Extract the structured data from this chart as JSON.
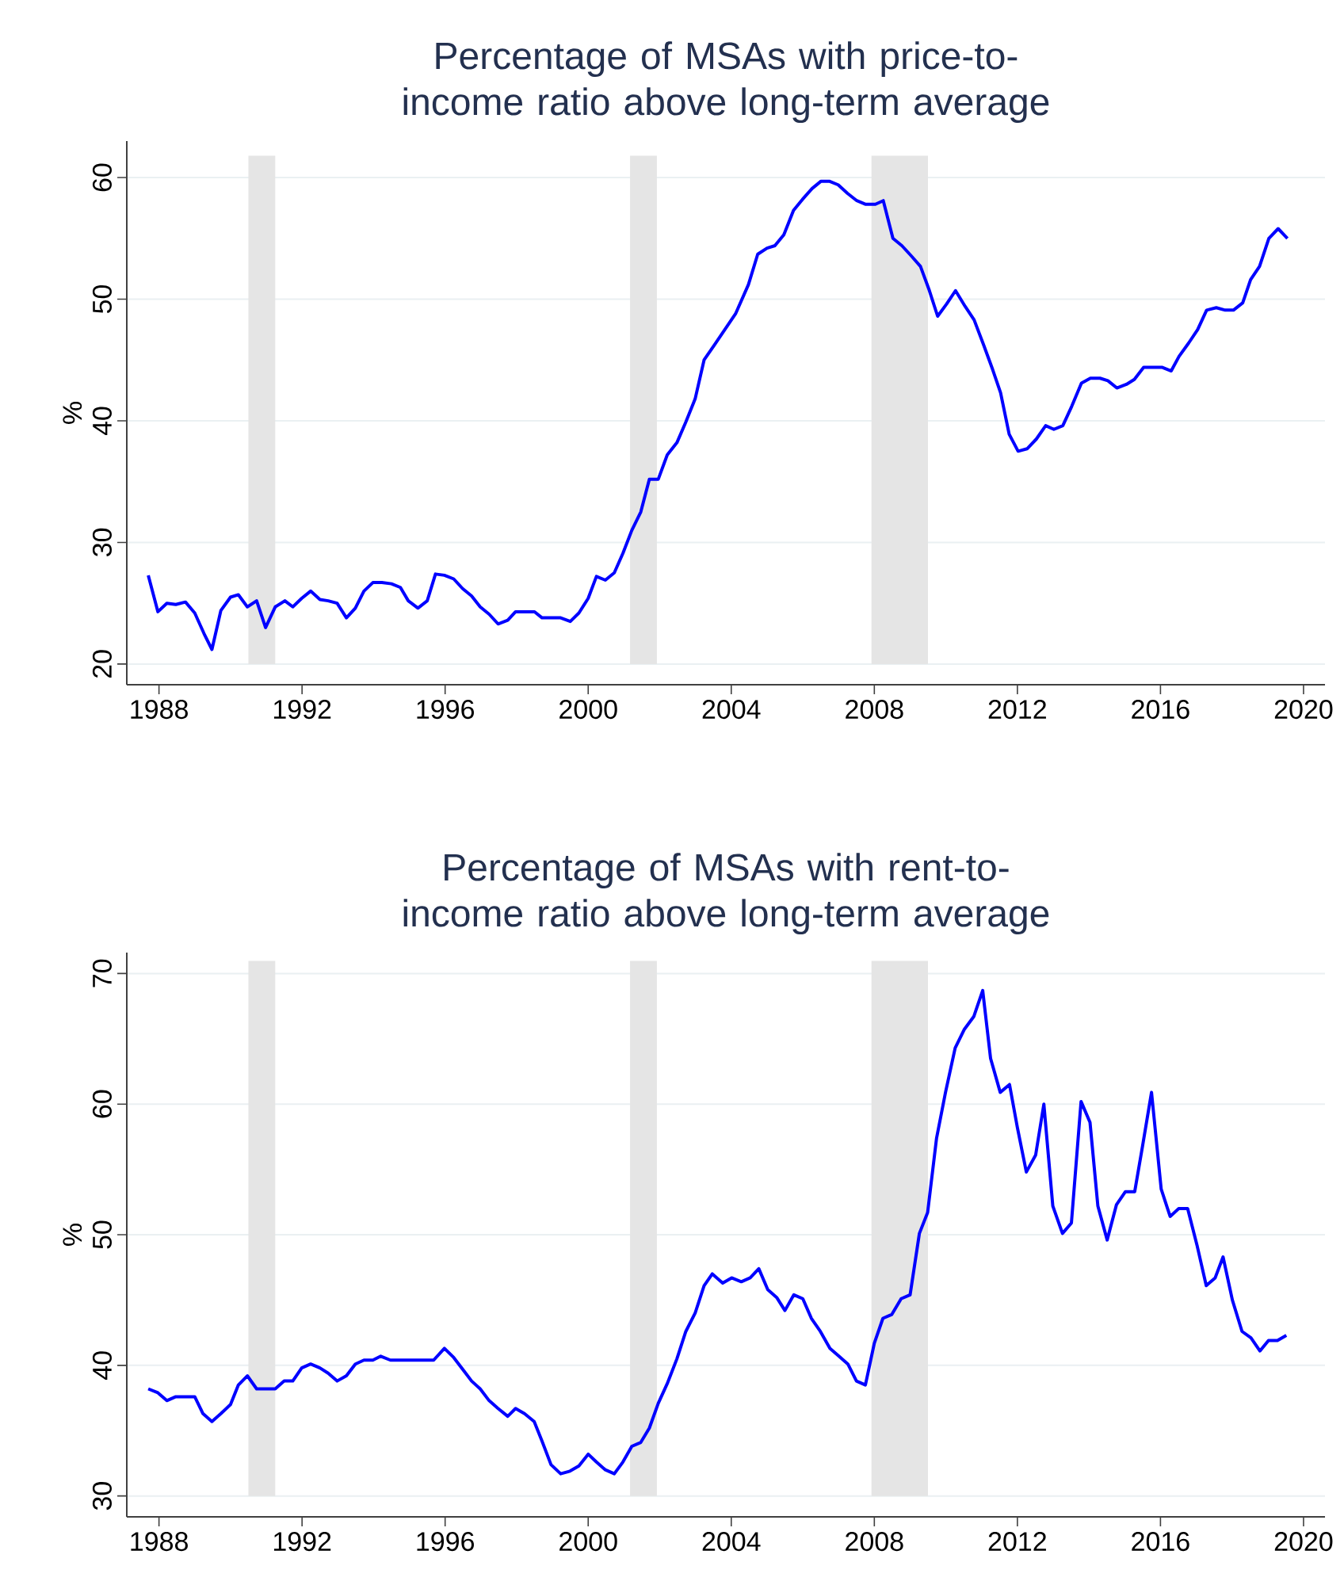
{
  "chart_data": [
    {
      "type": "line",
      "title": "Percentage of MSAs with price-to-income ratio above long-term average",
      "ylabel": "%",
      "color": "#0000ff",
      "grid": "y",
      "xlim": [
        1987.1,
        2020.6
      ],
      "ylim": [
        18.3,
        63
      ],
      "xticks": [
        1988,
        1992,
        1996,
        2000,
        2004,
        2008,
        2012,
        2016,
        2020
      ],
      "yticks": [
        20,
        30,
        40,
        50,
        60
      ],
      "bands": [
        {
          "axis": "x",
          "from": 1990.5,
          "to": 1991.25,
          "color": "#e5e5e5"
        },
        {
          "axis": "x",
          "from": 2001.17,
          "to": 2001.92,
          "color": "#e5e5e5"
        },
        {
          "axis": "x",
          "from": 2007.92,
          "to": 2009.5,
          "color": "#e5e5e5"
        }
      ],
      "x": [
        1987.7,
        1987.97,
        1988.22,
        1988.47,
        1988.74,
        1989.0,
        1989.26,
        1989.48,
        1989.73,
        1990.0,
        1990.22,
        1990.47,
        1990.73,
        1990.98,
        1991.25,
        1991.52,
        1991.74,
        1991.99,
        1992.24,
        1992.5,
        1992.73,
        1992.98,
        1993.24,
        1993.49,
        1993.73,
        1993.98,
        1994.23,
        1994.5,
        1994.75,
        1994.97,
        1995.24,
        1995.5,
        1995.73,
        1995.98,
        1996.24,
        1996.49,
        1996.74,
        1996.98,
        1997.23,
        1997.48,
        1997.75,
        1997.97,
        1998.5,
        1998.71,
        1999.23,
        1999.5,
        1999.74,
        2000.0,
        2000.23,
        2000.48,
        2000.73,
        2000.97,
        2001.22,
        2001.47,
        2001.71,
        2001.96,
        2002.21,
        2002.48,
        2002.73,
        2002.99,
        2003.24,
        2003.52,
        2003.82,
        2004.12,
        2004.48,
        2004.74,
        2005.0,
        2005.22,
        2005.47,
        2005.74,
        2005.99,
        2006.26,
        2006.51,
        2006.74,
        2006.99,
        2007.25,
        2007.51,
        2007.76,
        2008.03,
        2008.25,
        2008.52,
        2008.77,
        2009.02,
        2009.29,
        2009.54,
        2009.77,
        2010.02,
        2010.27,
        2010.54,
        2010.79,
        2011.06,
        2011.31,
        2011.53,
        2011.77,
        2012.02,
        2012.27,
        2012.53,
        2012.79,
        2013.02,
        2013.27,
        2013.52,
        2013.79,
        2014.04,
        2014.31,
        2014.53,
        2014.78,
        2015.05,
        2015.27,
        2015.53,
        2015.78,
        2016.04,
        2016.3,
        2016.52,
        2016.79,
        2017.04,
        2017.29,
        2017.56,
        2017.81,
        2018.04,
        2018.3,
        2018.52,
        2018.77,
        2019.03,
        2019.29,
        2019.55
      ],
      "values": [
        27.3,
        24.3,
        25.0,
        24.9,
        25.1,
        24.2,
        22.5,
        21.2,
        24.4,
        25.5,
        25.7,
        24.7,
        25.2,
        23.0,
        24.7,
        25.2,
        24.7,
        25.4,
        26.0,
        25.3,
        25.2,
        25.0,
        23.8,
        24.6,
        26.0,
        26.7,
        26.7,
        26.6,
        26.3,
        25.2,
        24.6,
        25.2,
        27.4,
        27.3,
        27.0,
        26.2,
        25.6,
        24.7,
        24.1,
        23.3,
        23.6,
        24.3,
        24.3,
        23.8,
        23.8,
        23.5,
        24.2,
        25.4,
        27.2,
        26.9,
        27.5,
        29.1,
        31.0,
        32.5,
        35.2,
        35.2,
        37.2,
        38.2,
        39.9,
        41.8,
        45.0,
        46.2,
        47.5,
        48.8,
        51.2,
        53.7,
        54.2,
        54.4,
        55.3,
        57.3,
        58.2,
        59.1,
        59.7,
        59.7,
        59.4,
        58.7,
        58.1,
        57.8,
        57.8,
        58.1,
        55.0,
        54.4,
        53.6,
        52.7,
        50.7,
        48.6,
        49.6,
        50.7,
        49.4,
        48.3,
        46.2,
        44.2,
        42.3,
        38.9,
        37.5,
        37.7,
        38.5,
        39.6,
        39.3,
        39.6,
        41.2,
        43.1,
        43.5,
        43.5,
        43.3,
        42.7,
        43.0,
        43.4,
        44.4,
        44.4,
        44.4,
        44.1,
        45.3,
        46.4,
        47.5,
        49.1,
        49.3,
        49.1,
        49.1,
        49.7,
        51.6,
        52.7,
        55.0,
        55.8,
        55.0
      ]
    },
    {
      "type": "line",
      "title": "Percentage of MSAs with rent-to-income ratio above long-term average",
      "ylabel": "%",
      "color": "#0000ff",
      "grid": "y",
      "xlim": [
        1987.1,
        2020.6
      ],
      "ylim": [
        28.4,
        71.6
      ],
      "xticks": [
        1988,
        1992,
        1996,
        2000,
        2004,
        2008,
        2012,
        2016,
        2020
      ],
      "yticks": [
        30,
        40,
        50,
        60,
        70
      ],
      "bands": [
        {
          "axis": "x",
          "from": 1990.5,
          "to": 1991.25,
          "color": "#e5e5e5"
        },
        {
          "axis": "x",
          "from": 2001.17,
          "to": 2001.92,
          "color": "#e5e5e5"
        },
        {
          "axis": "x",
          "from": 2007.92,
          "to": 2009.5,
          "color": "#e5e5e5"
        }
      ],
      "x": [
        1987.7,
        1987.97,
        1988.22,
        1988.47,
        1988.74,
        1989.0,
        1989.23,
        1989.48,
        1989.73,
        1990.0,
        1990.22,
        1990.47,
        1990.73,
        1990.98,
        1991.25,
        1991.5,
        1991.74,
        1991.99,
        1992.24,
        1992.5,
        1992.73,
        1992.98,
        1993.24,
        1993.49,
        1993.73,
        1993.98,
        1994.2,
        1994.47,
        1995.68,
        1995.98,
        1996.24,
        1996.49,
        1996.74,
        1996.98,
        1997.23,
        1997.48,
        1997.75,
        1997.97,
        1998.22,
        1998.49,
        1998.71,
        1998.96,
        1999.23,
        1999.49,
        1999.74,
        2000.0,
        2000.23,
        2000.48,
        2000.73,
        2000.97,
        2001.22,
        2001.47,
        2001.71,
        2001.96,
        2002.21,
        2002.48,
        2002.73,
        2002.99,
        2003.24,
        2003.47,
        2003.76,
        2004.01,
        2004.28,
        2004.53,
        2004.77,
        2005.02,
        2005.27,
        2005.5,
        2005.75,
        2006.0,
        2006.24,
        2006.49,
        2006.76,
        2007.01,
        2007.26,
        2007.5,
        2007.75,
        2008.0,
        2008.24,
        2008.49,
        2008.75,
        2009.0,
        2009.26,
        2009.49,
        2009.74,
        2009.99,
        2010.26,
        2010.51,
        2010.78,
        2011.03,
        2011.25,
        2011.52,
        2011.78,
        2012.0,
        2012.25,
        2012.51,
        2012.74,
        2012.99,
        2013.26,
        2013.51,
        2013.78,
        2014.03,
        2014.25,
        2014.51,
        2014.77,
        2015.02,
        2015.28,
        2015.5,
        2015.75,
        2016.02,
        2016.27,
        2016.51,
        2016.76,
        2017.03,
        2017.28,
        2017.53,
        2017.75,
        2018.01,
        2018.28,
        2018.53,
        2018.78,
        2019.02,
        2019.27,
        2019.52
      ],
      "values": [
        38.2,
        37.9,
        37.3,
        37.6,
        37.6,
        37.6,
        36.3,
        35.7,
        36.3,
        37.0,
        38.5,
        39.2,
        38.2,
        38.2,
        38.2,
        38.8,
        38.8,
        39.8,
        40.1,
        39.8,
        39.4,
        38.8,
        39.2,
        40.1,
        40.4,
        40.4,
        40.7,
        40.4,
        40.4,
        41.3,
        40.6,
        39.7,
        38.8,
        38.2,
        37.3,
        36.7,
        36.1,
        36.7,
        36.3,
        35.7,
        34.2,
        32.4,
        31.7,
        31.9,
        32.3,
        33.2,
        32.6,
        32.0,
        31.7,
        32.6,
        33.8,
        34.1,
        35.2,
        37.1,
        38.6,
        40.5,
        42.6,
        44.0,
        46.1,
        47.0,
        46.3,
        46.7,
        46.4,
        46.7,
        47.4,
        45.8,
        45.2,
        44.2,
        45.4,
        45.1,
        43.6,
        42.6,
        41.3,
        40.7,
        40.1,
        38.8,
        38.5,
        41.7,
        43.6,
        43.9,
        45.1,
        45.4,
        50.1,
        51.7,
        57.4,
        60.9,
        64.3,
        65.7,
        66.7,
        68.7,
        63.5,
        60.9,
        61.5,
        58.2,
        54.8,
        56.1,
        60.0,
        52.2,
        50.1,
        50.9,
        60.2,
        58.6,
        52.2,
        49.6,
        52.3,
        53.3,
        53.3,
        56.8,
        60.9,
        53.5,
        51.4,
        52.0,
        52.0,
        49.1,
        46.1,
        46.7,
        48.3,
        45.0,
        42.6,
        42.1,
        41.1,
        41.9,
        41.9,
        42.3
      ]
    }
  ]
}
